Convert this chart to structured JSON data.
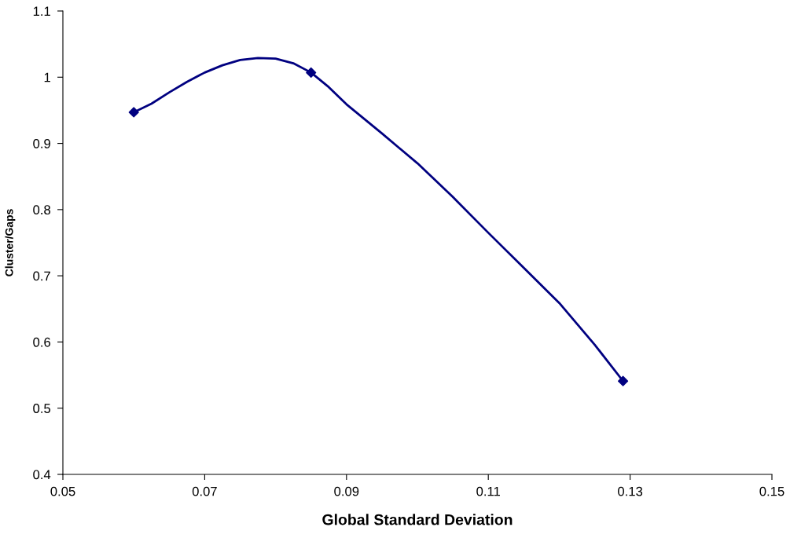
{
  "chart_data": {
    "type": "line",
    "xlabel": "Global Standard Deviation",
    "ylabel": "Cluster/Gaps",
    "series": [
      {
        "marker": "none",
        "color": "#000080",
        "x": [
          0.06,
          0.0625,
          0.065,
          0.0675,
          0.07,
          0.0725,
          0.075,
          0.0775,
          0.08,
          0.0825,
          0.085,
          0.0875,
          0.09,
          0.095,
          0.1,
          0.105,
          0.11,
          0.115,
          0.12,
          0.125,
          0.129
        ],
        "values": [
          0.947,
          0.96,
          0.977,
          0.993,
          1.007,
          1.018,
          1.026,
          1.029,
          1.028,
          1.021,
          1.007,
          0.985,
          0.959,
          0.915,
          0.87,
          0.819,
          0.765,
          0.712,
          0.659,
          0.596,
          0.541
        ]
      },
      {
        "type": "scatter",
        "marker": "diamond",
        "color": "#000080",
        "x": [
          0.06,
          0.085,
          0.129
        ],
        "values": [
          0.947,
          1.007,
          0.541
        ]
      }
    ],
    "xlim": [
      0.05,
      0.15
    ],
    "xticks": [
      0.05,
      0.07,
      0.09,
      0.11,
      0.13,
      0.15
    ],
    "ylim": [
      0.4,
      1.1
    ],
    "yticks": [
      {
        "value": 0.4,
        "label": "0.4"
      },
      {
        "value": 0.5,
        "label": "0.5"
      },
      {
        "value": 0.6,
        "label": "0.6"
      },
      {
        "value": 0.7,
        "label": "0.7"
      },
      {
        "value": 0.8,
        "label": "0.8"
      },
      {
        "value": 0.9,
        "label": "0.9"
      },
      {
        "value": 1.0,
        "label": "1"
      },
      {
        "value": 1.1,
        "label": "1.1"
      }
    ],
    "line_style": "solid",
    "grid": false,
    "legend": false
  }
}
